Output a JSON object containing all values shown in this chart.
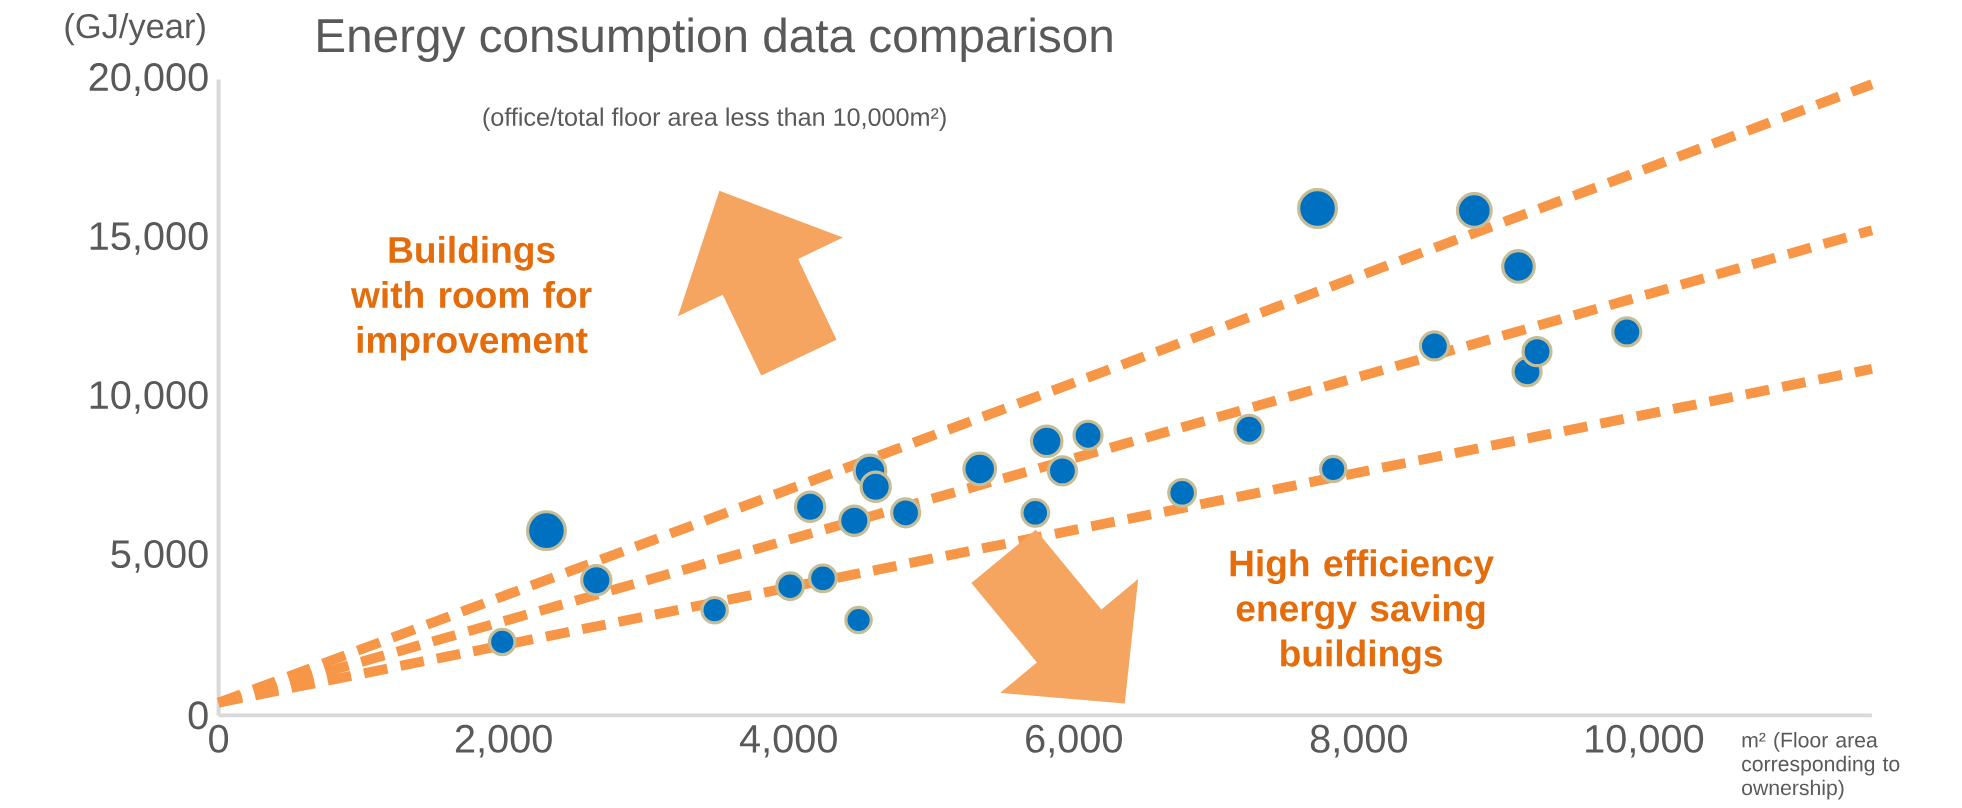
{
  "chart_data": {
    "type": "bubble",
    "title": "Energy consumption data comparison",
    "subtitle": "(office/total floor area less than 10,000m²)",
    "xlabel": "m² (Floor area corresponding to ownership)",
    "ylabel": "(GJ/year)",
    "annotations": [
      "Buildings with room for improvement",
      "High efficiency energy saving buildings"
    ],
    "xlim": [
      0,
      11600
    ],
    "ylim": [
      0,
      20000
    ],
    "xticks": [
      0,
      {
        "value": 2000,
        "label": "2,000"
      },
      {
        "value": 4000,
        "label": "4,000"
      },
      {
        "value": 6000,
        "label": "6,000"
      },
      {
        "value": 8000,
        "label": "8,000"
      },
      {
        "value": 10000,
        "label": "10,000"
      }
    ],
    "yticks": [
      0,
      {
        "value": 5000,
        "label": "5,000"
      },
      {
        "value": 10000,
        "label": "10,000"
      },
      {
        "value": 15000,
        "label": "15,000"
      },
      {
        "value": 20000,
        "label": "20,000"
      }
    ],
    "grid": false,
    "series": [
      {
        "color": "#0070c0",
        "marker": "circle",
        "x": [
          1990,
          2300,
          2650,
          3480,
          4010,
          4240,
          4150,
          4460,
          4490,
          4570,
          4610,
          4820,
          5340,
          5730,
          5810,
          5920,
          6100,
          6760,
          7230,
          7710,
          7820,
          8530,
          8810,
          9120,
          9180,
          9250,
          9880
        ],
        "values": [
          2310,
          5810,
          4250,
          3310,
          4060,
          4310,
          6560,
          6120,
          3000,
          7690,
          7190,
          6370,
          7750,
          6370,
          8620,
          7690,
          8810,
          7000,
          9000,
          15940,
          7750,
          11620,
          15880,
          14120,
          10810,
          11440,
          12060
        ],
        "sizes": [
          0.45,
          1,
          0.6,
          0.45,
          0.5,
          0.5,
          0.6,
          0.6,
          0.45,
          0.7,
          0.6,
          0.55,
          0.7,
          0.5,
          0.65,
          0.55,
          0.55,
          0.5,
          0.55,
          1,
          0.45,
          0.55,
          0.8,
          0.7,
          0.55,
          0.55,
          0.55
        ]
      },
      {
        "type": "line",
        "color": "#f79646",
        "line_style": "dashed",
        "marker": "none",
        "x": [
          0,
          11600
        ],
        "values": [
          400,
          19850
        ]
      },
      {
        "type": "line",
        "color": "#f79646",
        "line_style": "dashed",
        "marker": "none",
        "x": [
          0,
          11600
        ],
        "values": [
          400,
          15260
        ]
      },
      {
        "type": "line",
        "color": "#f79646",
        "line_style": "dashed",
        "marker": "none",
        "x": [
          0,
          11600
        ],
        "values": [
          400,
          10900
        ]
      }
    ]
  }
}
